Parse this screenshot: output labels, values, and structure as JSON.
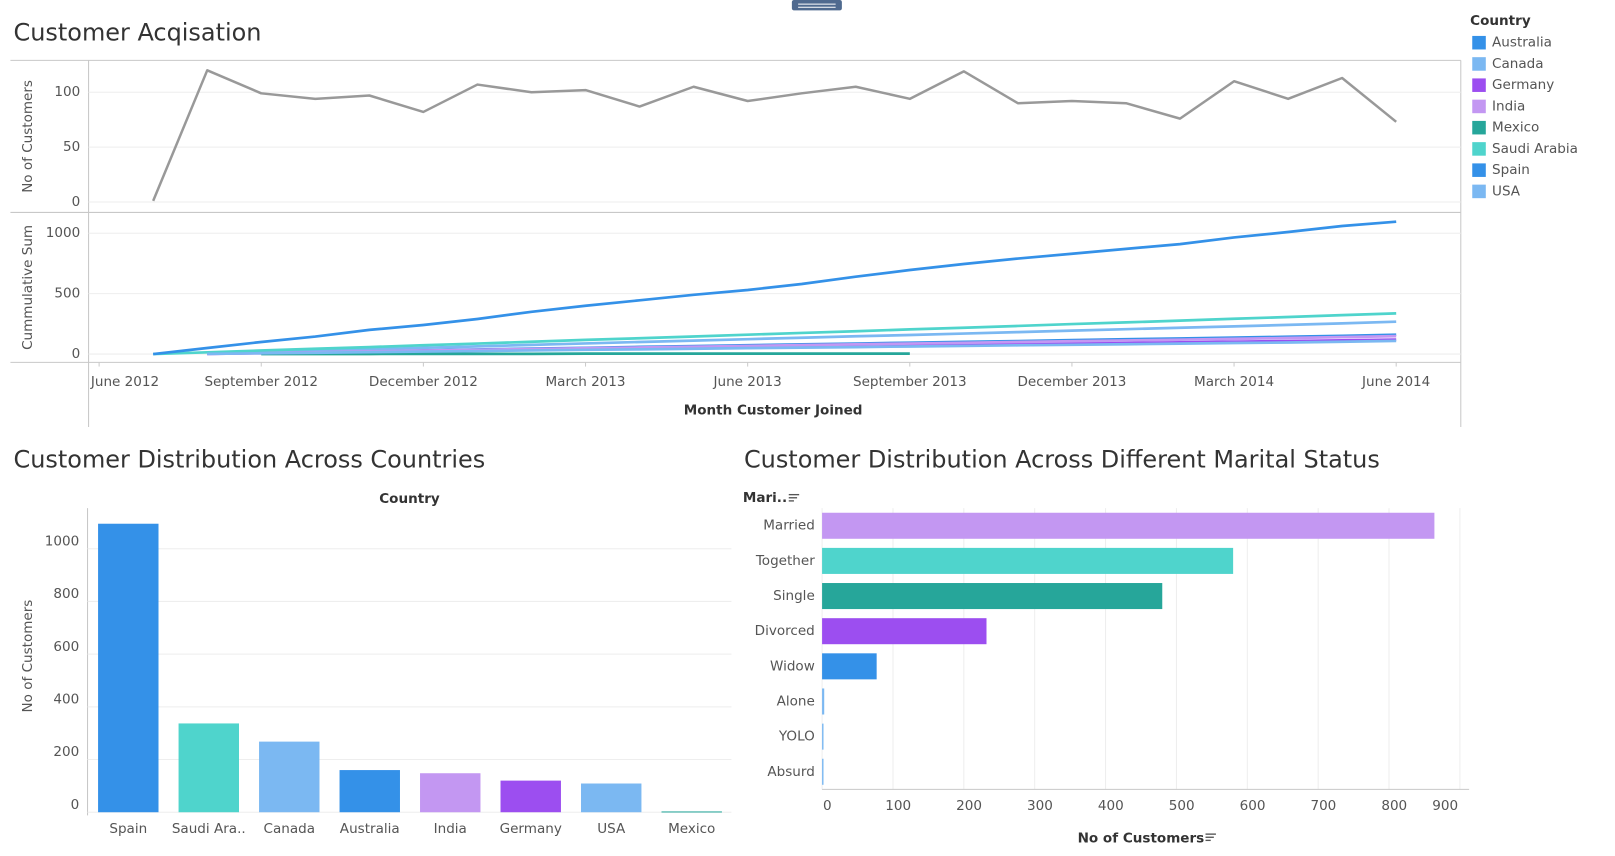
{
  "chart_data": [
    {
      "type": "line",
      "title": "Customer Acqisation",
      "x_label": "Month Customer Joined",
      "x": [
        "2012-07",
        "2012-08",
        "2012-09",
        "2012-10",
        "2012-11",
        "2012-12",
        "2013-01",
        "2013-02",
        "2013-03",
        "2013-04",
        "2013-05",
        "2013-06",
        "2013-07",
        "2013-08",
        "2013-09",
        "2013-10",
        "2013-11",
        "2013-12",
        "2014-01",
        "2014-02",
        "2014-03",
        "2014-04",
        "2014-05",
        "2014-06"
      ],
      "xticks": [
        {
          "value": "2012-06",
          "label": "June 2012"
        },
        {
          "value": "2012-09",
          "label": "September 2012"
        },
        {
          "value": "2012-12",
          "label": "December 2012"
        },
        {
          "value": "2013-03",
          "label": "March 2013"
        },
        {
          "value": "2013-06",
          "label": "June 2013"
        },
        {
          "value": "2013-09",
          "label": "September 2013"
        },
        {
          "value": "2013-12",
          "label": "December 2013"
        },
        {
          "value": "2014-03",
          "label": "March 2014"
        },
        {
          "value": "2014-06",
          "label": "June 2014"
        }
      ],
      "panes": [
        {
          "y_label": "No of Customers",
          "ylim": [
            -9.5,
            129
          ],
          "yticks": [
            0,
            50,
            100
          ],
          "series": [
            {
              "color": "#999999",
              "values": [
                1,
                120,
                99,
                94,
                97,
                82,
                107,
                100,
                102,
                87,
                105,
                92,
                99,
                105,
                94,
                119,
                90,
                92,
                90,
                76,
                110,
                94,
                113,
                73
              ]
            }
          ]
        },
        {
          "y_label": "Cummulative Sum",
          "ylim": [
            -69,
            1172
          ],
          "yticks": [
            0,
            500,
            1000
          ],
          "series": [
            {
              "name": "Australia",
              "color": "#3491e8",
              "values": [
                null,
                3,
                10,
                17,
                24,
                31,
                38,
                45,
                52,
                59,
                66,
                73,
                80,
                87,
                94,
                101,
                108,
                115,
                122,
                129,
                136,
                143,
                151,
                160
              ]
            },
            {
              "name": "Canada",
              "color": "#7bb8f2",
              "values": [
                null,
                5,
                17,
                29,
                40,
                52,
                64,
                76,
                88,
                100,
                111,
                123,
                135,
                147,
                158,
                170,
                182,
                194,
                206,
                218,
                229,
                241,
                254,
                268
              ]
            },
            {
              "name": "Germany",
              "color": "#9c4ef0",
              "values": [
                null,
                2,
                7,
                13,
                18,
                23,
                28,
                34,
                39,
                44,
                49,
                55,
                60,
                65,
                71,
                76,
                81,
                86,
                92,
                97,
                102,
                108,
                114,
                120
              ]
            },
            {
              "name": "India",
              "color": "#c397f2",
              "values": [
                null,
                2,
                9,
                15,
                22,
                28,
                35,
                41,
                48,
                54,
                61,
                67,
                74,
                80,
                87,
                93,
                100,
                106,
                113,
                119,
                126,
                133,
                140,
                148
              ]
            },
            {
              "name": "Mexico",
              "color": "#26a69a",
              "values": [
                null,
                null,
                1,
                1,
                1,
                2,
                2,
                2,
                3,
                3,
                3,
                3,
                3,
                3,
                3,
                null,
                null,
                null,
                null,
                null,
                null,
                null,
                null,
                null
              ]
            },
            {
              "name": "Saudi Arabia",
              "color": "#4fd4cc",
              "values": [
                0,
                15,
                29,
                44,
                58,
                73,
                87,
                102,
                117,
                131,
                146,
                160,
                175,
                189,
                204,
                218,
                233,
                248,
                262,
                277,
                292,
                307,
                322,
                337
              ]
            },
            {
              "name": "Spain",
              "color": "#3491e8",
              "values": [
                0,
                50,
                100,
                145,
                200,
                240,
                290,
                350,
                400,
                445,
                490,
                530,
                580,
                640,
                695,
                745,
                790,
                830,
                870,
                910,
                965,
                1010,
                1060,
                1095
              ]
            },
            {
              "name": "USA",
              "color": "#7bb8f2",
              "values": [
                null,
                2,
                7,
                11,
                16,
                21,
                25,
                30,
                35,
                39,
                44,
                49,
                53,
                58,
                63,
                67,
                72,
                77,
                81,
                86,
                91,
                96,
                102,
                109
              ]
            }
          ]
        }
      ],
      "legend_title": "Country",
      "legend": "right",
      "grid": true
    },
    {
      "type": "bar",
      "title": "Customer Distribution Across Countries",
      "x_label": "Country",
      "y_label": "No of Customers",
      "categories": [
        "Spain",
        "Saudi Ara..",
        "Canada",
        "Australia",
        "India",
        "Germany",
        "USA",
        "Mexico"
      ],
      "values": [
        1095,
        337,
        268,
        160,
        148,
        120,
        109,
        3
      ],
      "colors": [
        "#3491e8",
        "#4fd4cc",
        "#7bb8f2",
        "#3491e8",
        "#c397f2",
        "#9c4ef0",
        "#7bb8f2",
        "#26a69a"
      ],
      "ylim": [
        -12,
        1154
      ],
      "yticks": [
        0,
        200,
        400,
        600,
        800,
        1000
      ],
      "grid": true
    },
    {
      "type": "hbar",
      "title": "Customer Distribution Across Different Marital Status",
      "y_label": "Mari..",
      "x_label": "No of Customers",
      "categories": [
        "Married",
        "Together",
        "Single",
        "Divorced",
        "Widow",
        "Alone",
        "YOLO",
        "Absurd"
      ],
      "values": [
        864,
        580,
        480,
        232,
        77,
        3,
        2,
        2
      ],
      "colors": [
        "#c397f2",
        "#4fd4cc",
        "#26a69a",
        "#9c4ef0",
        "#3491e8",
        "#7bb8f2",
        "#7bb8f2",
        "#7bb8f2"
      ],
      "xlim": [
        0,
        913
      ],
      "xticks": [
        0,
        100,
        200,
        300,
        400,
        500,
        600,
        700,
        800,
        900
      ],
      "grid": true
    }
  ]
}
